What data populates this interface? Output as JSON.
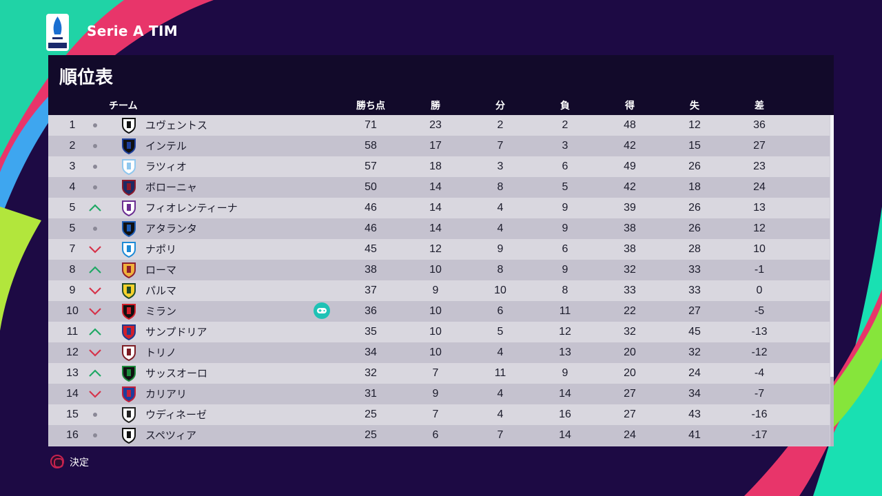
{
  "header": {
    "league_name": "Serie A TIM",
    "logo_text": "SERIE A"
  },
  "panel": {
    "title": "順位表"
  },
  "columns": [
    "チーム",
    "勝ち点",
    "勝",
    "分",
    "負",
    "得",
    "失",
    "差"
  ],
  "rows": [
    {
      "rank": "1",
      "trend": "same",
      "crest": "juventus-crest",
      "team": "ユヴェントス",
      "controlled": false,
      "stats": [
        "71",
        "23",
        "2",
        "2",
        "48",
        "12",
        "36"
      ]
    },
    {
      "rank": "2",
      "trend": "same",
      "crest": "inter-crest",
      "team": "インテル",
      "controlled": false,
      "stats": [
        "58",
        "17",
        "7",
        "3",
        "42",
        "15",
        "27"
      ]
    },
    {
      "rank": "3",
      "trend": "same",
      "crest": "lazio-crest",
      "team": "ラツィオ",
      "controlled": false,
      "stats": [
        "57",
        "18",
        "3",
        "6",
        "49",
        "26",
        "23"
      ]
    },
    {
      "rank": "4",
      "trend": "same",
      "crest": "bologna-crest",
      "team": "ボローニャ",
      "controlled": false,
      "stats": [
        "50",
        "14",
        "8",
        "5",
        "42",
        "18",
        "24"
      ]
    },
    {
      "rank": "5",
      "trend": "up",
      "crest": "fiorentina-crest",
      "team": "フィオレンティーナ",
      "controlled": false,
      "stats": [
        "46",
        "14",
        "4",
        "9",
        "39",
        "26",
        "13"
      ]
    },
    {
      "rank": "5",
      "trend": "same",
      "crest": "atalanta-crest",
      "team": "アタランタ",
      "controlled": false,
      "stats": [
        "46",
        "14",
        "4",
        "9",
        "38",
        "26",
        "12"
      ]
    },
    {
      "rank": "7",
      "trend": "down",
      "crest": "napoli-crest",
      "team": "ナポリ",
      "controlled": false,
      "stats": [
        "45",
        "12",
        "9",
        "6",
        "38",
        "28",
        "10"
      ]
    },
    {
      "rank": "8",
      "trend": "up",
      "crest": "roma-crest",
      "team": "ローマ",
      "controlled": false,
      "stats": [
        "38",
        "10",
        "8",
        "9",
        "32",
        "33",
        "-1"
      ]
    },
    {
      "rank": "9",
      "trend": "down",
      "crest": "parma-crest",
      "team": "パルマ",
      "controlled": false,
      "stats": [
        "37",
        "9",
        "10",
        "8",
        "33",
        "33",
        "0"
      ]
    },
    {
      "rank": "10",
      "trend": "down",
      "crest": "milan-crest",
      "team": "ミラン",
      "controlled": true,
      "stats": [
        "36",
        "10",
        "6",
        "11",
        "22",
        "27",
        "-5"
      ]
    },
    {
      "rank": "11",
      "trend": "up",
      "crest": "sampdoria-crest",
      "team": "サンプドリア",
      "controlled": false,
      "stats": [
        "35",
        "10",
        "5",
        "12",
        "32",
        "45",
        "-13"
      ]
    },
    {
      "rank": "12",
      "trend": "down",
      "crest": "torino-crest",
      "team": "トリノ",
      "controlled": false,
      "stats": [
        "34",
        "10",
        "4",
        "13",
        "20",
        "32",
        "-12"
      ]
    },
    {
      "rank": "13",
      "trend": "up",
      "crest": "sassuolo-crest",
      "team": "サッスオーロ",
      "controlled": false,
      "stats": [
        "32",
        "7",
        "11",
        "9",
        "20",
        "24",
        "-4"
      ]
    },
    {
      "rank": "14",
      "trend": "down",
      "crest": "cagliari-crest",
      "team": "カリアリ",
      "controlled": false,
      "stats": [
        "31",
        "9",
        "4",
        "14",
        "27",
        "34",
        "-7"
      ]
    },
    {
      "rank": "15",
      "trend": "same",
      "crest": "udinese-crest",
      "team": "ウディネーゼ",
      "controlled": false,
      "stats": [
        "25",
        "7",
        "4",
        "16",
        "27",
        "43",
        "-16"
      ]
    },
    {
      "rank": "16",
      "trend": "same",
      "crest": "spezia-crest",
      "team": "スペツィア",
      "controlled": false,
      "stats": [
        "25",
        "6",
        "7",
        "14",
        "24",
        "41",
        "-17"
      ]
    }
  ],
  "footer": {
    "confirm_label": "決定",
    "confirm_icon": "circle-button-icon"
  },
  "colors": {
    "background": "#1d0a44",
    "panel": "#120a2a",
    "row_light": "#d9d7df",
    "row_dark": "#c5c2cf",
    "trend_up": "#1fa864",
    "trend_down": "#d6334a",
    "controller_icon": "#1fc2b5"
  }
}
